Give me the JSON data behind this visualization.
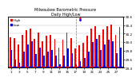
{
  "title": "Milwaukee Barometric Pressure",
  "subtitle": "Daily High/Low",
  "background_color": "#ffffff",
  "plot_bg": "#ffffff",
  "high_color": "#ff0000",
  "low_color": "#0000ff",
  "bar_width": 0.35,
  "days": [
    1,
    2,
    3,
    4,
    5,
    6,
    7,
    8,
    9,
    10,
    11,
    12,
    13,
    14,
    15,
    16,
    17,
    18,
    19,
    20,
    21,
    22,
    23,
    24,
    25,
    26,
    27,
    28
  ],
  "high_values": [
    30.12,
    30.1,
    29.95,
    30.18,
    30.28,
    30.32,
    30.08,
    30.22,
    30.02,
    30.15,
    30.18,
    30.08,
    29.88,
    30.05,
    30.22,
    30.1,
    29.85,
    29.92,
    29.98,
    30.15,
    30.32,
    30.38,
    30.18,
    30.3,
    30.38,
    30.42,
    30.18,
    30.35
  ],
  "low_values": [
    29.82,
    29.6,
    29.52,
    29.78,
    29.95,
    30.02,
    29.72,
    29.88,
    29.68,
    29.78,
    29.82,
    29.68,
    29.48,
    29.68,
    29.85,
    29.75,
    29.48,
    29.55,
    29.62,
    29.78,
    30.0,
    30.08,
    29.82,
    29.95,
    30.05,
    30.02,
    29.75,
    29.88
  ],
  "ylim_min": 29.4,
  "ylim_max": 30.6,
  "y_ticks": [
    29.4,
    29.6,
    29.8,
    30.0,
    30.2,
    30.4,
    30.6
  ],
  "dashed_line_x": 16,
  "legend_high": "High",
  "legend_low": "Low"
}
